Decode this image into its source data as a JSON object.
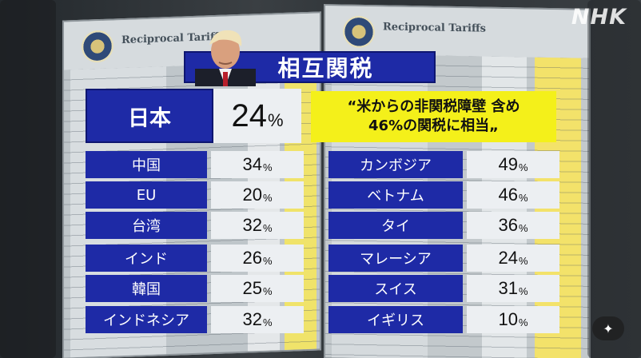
{
  "broadcaster": "NHK",
  "background": {
    "board_heading": "Reciprocal Tariffs"
  },
  "title": "相互関税",
  "headline": {
    "label": "日本",
    "value": "24",
    "unit": "%",
    "quote_line1": "“米からの非関税障壁 含め",
    "quote_line2": "46%の関税に相当„"
  },
  "left_rows": [
    {
      "label": "中国",
      "value": "34",
      "unit": "%"
    },
    {
      "label": "EU",
      "value": "20",
      "unit": "%"
    },
    {
      "label": "台湾",
      "value": "32",
      "unit": "%"
    },
    {
      "label": "インド",
      "value": "26",
      "unit": "%"
    },
    {
      "label": "韓国",
      "value": "25",
      "unit": "%"
    },
    {
      "label": "インドネシア",
      "value": "32",
      "unit": "%"
    }
  ],
  "right_rows": [
    {
      "label": "カンボジア",
      "value": "49",
      "unit": "%"
    },
    {
      "label": "ベトナム",
      "value": "46",
      "unit": "%"
    },
    {
      "label": "タイ",
      "value": "36",
      "unit": "%"
    },
    {
      "label": "マレーシア",
      "value": "24",
      "unit": "%"
    },
    {
      "label": "スイス",
      "value": "31",
      "unit": "%"
    },
    {
      "label": "イギリス",
      "value": "10",
      "unit": "%"
    }
  ],
  "colors": {
    "label_blue": "#1e2aa6",
    "value_bg": "#eceff2",
    "quote_yellow": "#f4f01a"
  },
  "icons": {
    "effects_button": "magic-wand-icon"
  }
}
